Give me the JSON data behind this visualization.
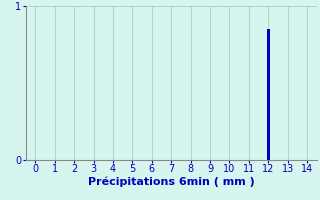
{
  "title": "",
  "xlabel": "Précipitations 6min ( mm )",
  "ylabel": "",
  "background_color": "#d5f5ee",
  "plot_bg_color": "#d5f5ee",
  "bar_x": [
    12
  ],
  "bar_height": [
    0.85
  ],
  "bar_color": "#0000bb",
  "bar_width": 0.15,
  "xlim": [
    -0.5,
    14.5
  ],
  "ylim": [
    0,
    1
  ],
  "xticks": [
    0,
    1,
    2,
    3,
    4,
    5,
    6,
    7,
    8,
    9,
    10,
    11,
    12,
    13,
    14
  ],
  "yticks": [
    0,
    1
  ],
  "grid_color": "#b0c8c0",
  "tick_color": "#0000bb",
  "label_color": "#0000bb",
  "axis_color": "#888888",
  "xlabel_fontsize": 8,
  "tick_fontsize": 7
}
